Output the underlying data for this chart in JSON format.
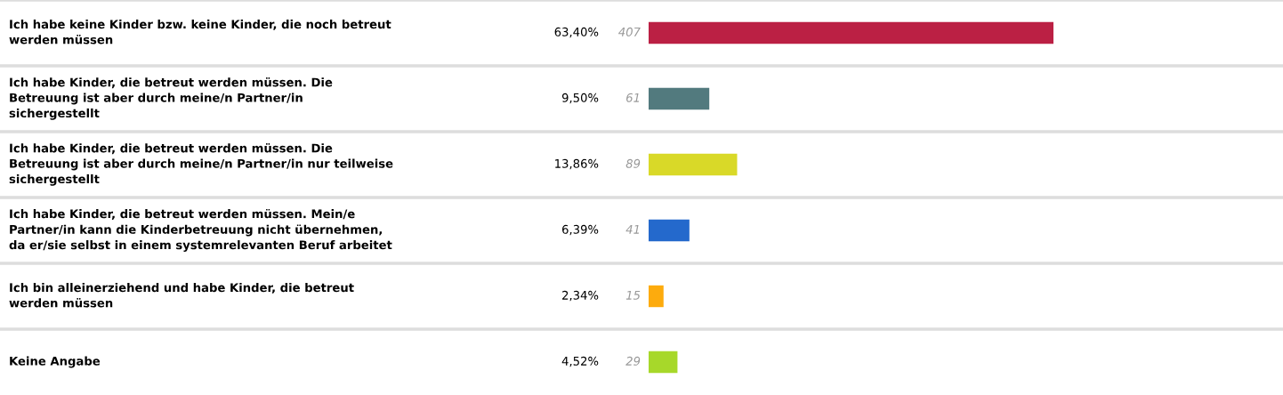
{
  "chart_data": {
    "type": "bar",
    "orientation": "horizontal",
    "categories": [
      "Ich habe keine Kinder bzw. keine Kinder, die noch betreut\nwerden müssen",
      "Ich habe Kinder, die betreut werden müssen. Die\nBetreuung ist aber durch meine/n Partner/in\nsichergestellt",
      "Ich habe Kinder, die betreut werden müssen. Die\nBetreuung ist aber durch meine/n Partner/in nur teilweise\nsichergestellt",
      "Ich habe Kinder, die betreut werden müssen. Mein/e\nPartner/in kann die Kinderbetreuung nicht übernehmen,\nda er/sie selbst in einem systemrelevanten Beruf arbeitet",
      "Ich bin alleinerziehend und habe Kinder, die betreut\nwerden müssen",
      "Keine Angabe"
    ],
    "values": [
      407,
      61,
      89,
      41,
      15,
      29
    ],
    "colors": [
      "#bb2044",
      "#527a7e",
      "#d9d928",
      "#2469cc",
      "#fdab0d",
      "#a7d82a"
    ],
    "data_labels": true,
    "annotations": [
      "63,40%",
      "9,50%",
      "13,86%",
      "6,39%",
      "2,34%",
      "4,52%"
    ]
  }
}
